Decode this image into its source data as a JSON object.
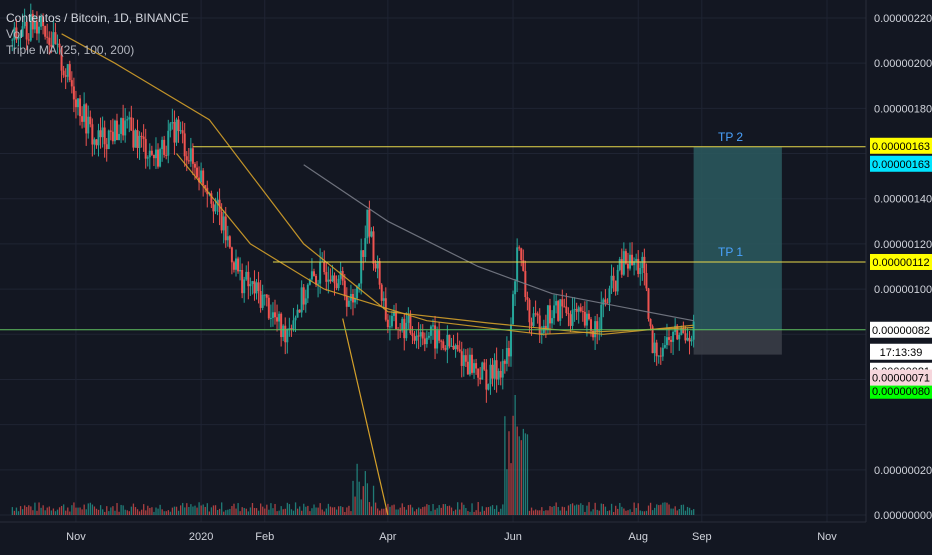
{
  "legend": {
    "title": "Contentos / Bitcoin, 1D, BINANCE",
    "volume": "Vol",
    "indicator": "Triple MA (25, 100, 200)"
  },
  "colors": {
    "background": "#131722",
    "grid": "#1f2433",
    "up": "#26a69a",
    "down": "#ef5350",
    "ma_orange": "#d4a02a",
    "ma_gray": "#787b86",
    "level_yellow": "#e8d84a",
    "level_green": "#5fbf5f",
    "target_zone": "#2b5b5f",
    "stop_zone": "#3a3d47"
  },
  "chart_data": {
    "type": "candlestick",
    "title": "Contentos / Bitcoin, 1D, BINANCE",
    "ylim": [
      0.0,
      2.3e-06
    ],
    "y_ticks": [
      "0.00000220",
      "0.00000200",
      "0.00000180",
      "0.00000140",
      "0.00000120",
      "0.00000100",
      "0.00000020",
      "0.00000000"
    ],
    "x_ticks": [
      "Nov",
      "2020",
      "Feb",
      "Apr",
      "Jun",
      "Aug",
      "Sep",
      "Nov"
    ],
    "approx_close_path": [
      {
        "t": "2019-10-01",
        "v": 2.1e-06
      },
      {
        "t": "2019-10-15",
        "v": 2.2e-06
      },
      {
        "t": "2019-10-30",
        "v": 1.9e-06
      },
      {
        "t": "2019-11-10",
        "v": 1.65e-06
      },
      {
        "t": "2019-11-25",
        "v": 1.72e-06
      },
      {
        "t": "2019-12-10",
        "v": 1.58e-06
      },
      {
        "t": "2019-12-20",
        "v": 1.72e-06
      },
      {
        "t": "2019-12-28",
        "v": 1.55e-06
      },
      {
        "t": "2020-01-05",
        "v": 1.45e-06
      },
      {
        "t": "2020-01-20",
        "v": 1.05e-06
      },
      {
        "t": "2020-02-01",
        "v": 9.5e-07
      },
      {
        "t": "2020-02-10",
        "v": 8e-07
      },
      {
        "t": "2020-02-25",
        "v": 1.05e-06
      },
      {
        "t": "2020-03-05",
        "v": 1.1e-06
      },
      {
        "t": "2020-03-15",
        "v": 9.2e-07
      },
      {
        "t": "2020-03-22",
        "v": 1.3e-06
      },
      {
        "t": "2020-04-01",
        "v": 8.5e-07
      },
      {
        "t": "2020-04-20",
        "v": 8e-07
      },
      {
        "t": "2020-05-05",
        "v": 7.2e-07
      },
      {
        "t": "2020-05-20",
        "v": 6e-07
      },
      {
        "t": "2020-05-30",
        "v": 7e-07
      },
      {
        "t": "2020-06-03",
        "v": 1.2e-06
      },
      {
        "t": "2020-06-10",
        "v": 8.3e-07
      },
      {
        "t": "2020-06-25",
        "v": 9.2e-07
      },
      {
        "t": "2020-07-10",
        "v": 8.2e-07
      },
      {
        "t": "2020-07-25",
        "v": 1.12e-06
      },
      {
        "t": "2020-08-03",
        "v": 1.1e-06
      },
      {
        "t": "2020-08-08",
        "v": 7.2e-07
      },
      {
        "t": "2020-08-20",
        "v": 8e-07
      },
      {
        "t": "2020-08-28",
        "v": 8.2e-07
      }
    ],
    "moving_averages": [
      {
        "name": "MA 25",
        "color": "#d4a02a",
        "points": [
          {
            "t": "2019-12-20",
            "v": 1.6e-06
          },
          {
            "t": "2020-01-25",
            "v": 1.2e-06
          },
          {
            "t": "2020-03-01",
            "v": 1e-06
          },
          {
            "t": "2020-04-20",
            "v": 8.6e-07
          },
          {
            "t": "2020-06-15",
            "v": 8e-07
          },
          {
            "t": "2020-08-28",
            "v": 8.3e-07
          }
        ]
      },
      {
        "name": "MA 100",
        "color": "#d4a02a",
        "points": [
          {
            "t": "2019-10-25",
            "v": 2.13e-06
          },
          {
            "t": "2019-11-20",
            "v": 2e-06
          },
          {
            "t": "2020-01-05",
            "v": 1.75e-06
          },
          {
            "t": "2020-02-20",
            "v": 1.2e-06
          },
          {
            "t": "2020-04-01",
            "v": 9e-07
          },
          {
            "t": "2020-05-20",
            "v": 8.5e-07
          },
          {
            "t": "2020-07-15",
            "v": 8e-07
          },
          {
            "t": "2020-08-28",
            "v": 8.4e-07
          }
        ]
      },
      {
        "name": "MA 200",
        "color": "#787b86",
        "points": [
          {
            "t": "2020-02-20",
            "v": 1.55e-06
          },
          {
            "t": "2020-04-01",
            "v": 1.3e-06
          },
          {
            "t": "2020-05-15",
            "v": 1.1e-06
          },
          {
            "t": "2020-06-20",
            "v": 9.8e-07
          },
          {
            "t": "2020-08-28",
            "v": 8.6e-07
          }
        ]
      }
    ],
    "horizontal_levels": [
      {
        "label": "TP 2",
        "value": 1.63e-06,
        "color": "#e8d84a"
      },
      {
        "label": "TP 1",
        "value": 1.12e-06,
        "color": "#e8d84a"
      },
      {
        "label": "",
        "value": 8.2e-07,
        "color": "#5fbf5f"
      }
    ],
    "trend_line": {
      "from": {
        "t": "2020-03-10",
        "v": 8.7e-07
      },
      "to": {
        "t": "2020-04-01",
        "v": 0.0
      },
      "color": "#d4a02a"
    },
    "position_box": {
      "entry": 8.2e-07,
      "target": 1.63e-06,
      "stop": 7.1e-07
    },
    "volume_note": "volume bars with spikes in March and June",
    "price_labels": [
      {
        "text": "0.00000163",
        "bg": "#ffff00",
        "fg": "#000000"
      },
      {
        "text": "0.00000163",
        "bg": "#00e5ff",
        "fg": "#000000"
      },
      {
        "text": "0.00000112",
        "bg": "#ffff00",
        "fg": "#000000"
      },
      {
        "text": "0.00000082",
        "bg": "#ffffff",
        "fg": "#000000"
      },
      {
        "text": "17:13:39",
        "bg": "#ffffff",
        "fg": "#000000"
      },
      {
        "text": "0.00000081",
        "bg": "#ffffff",
        "fg": "#000000"
      },
      {
        "text": "0.00000080",
        "bg": "#00ff00",
        "fg": "#000000"
      },
      {
        "text": "0.00000071",
        "bg": "#f6d6dc",
        "fg": "#000000"
      }
    ],
    "annotations": [
      "TP 2",
      "TP 1"
    ]
  }
}
